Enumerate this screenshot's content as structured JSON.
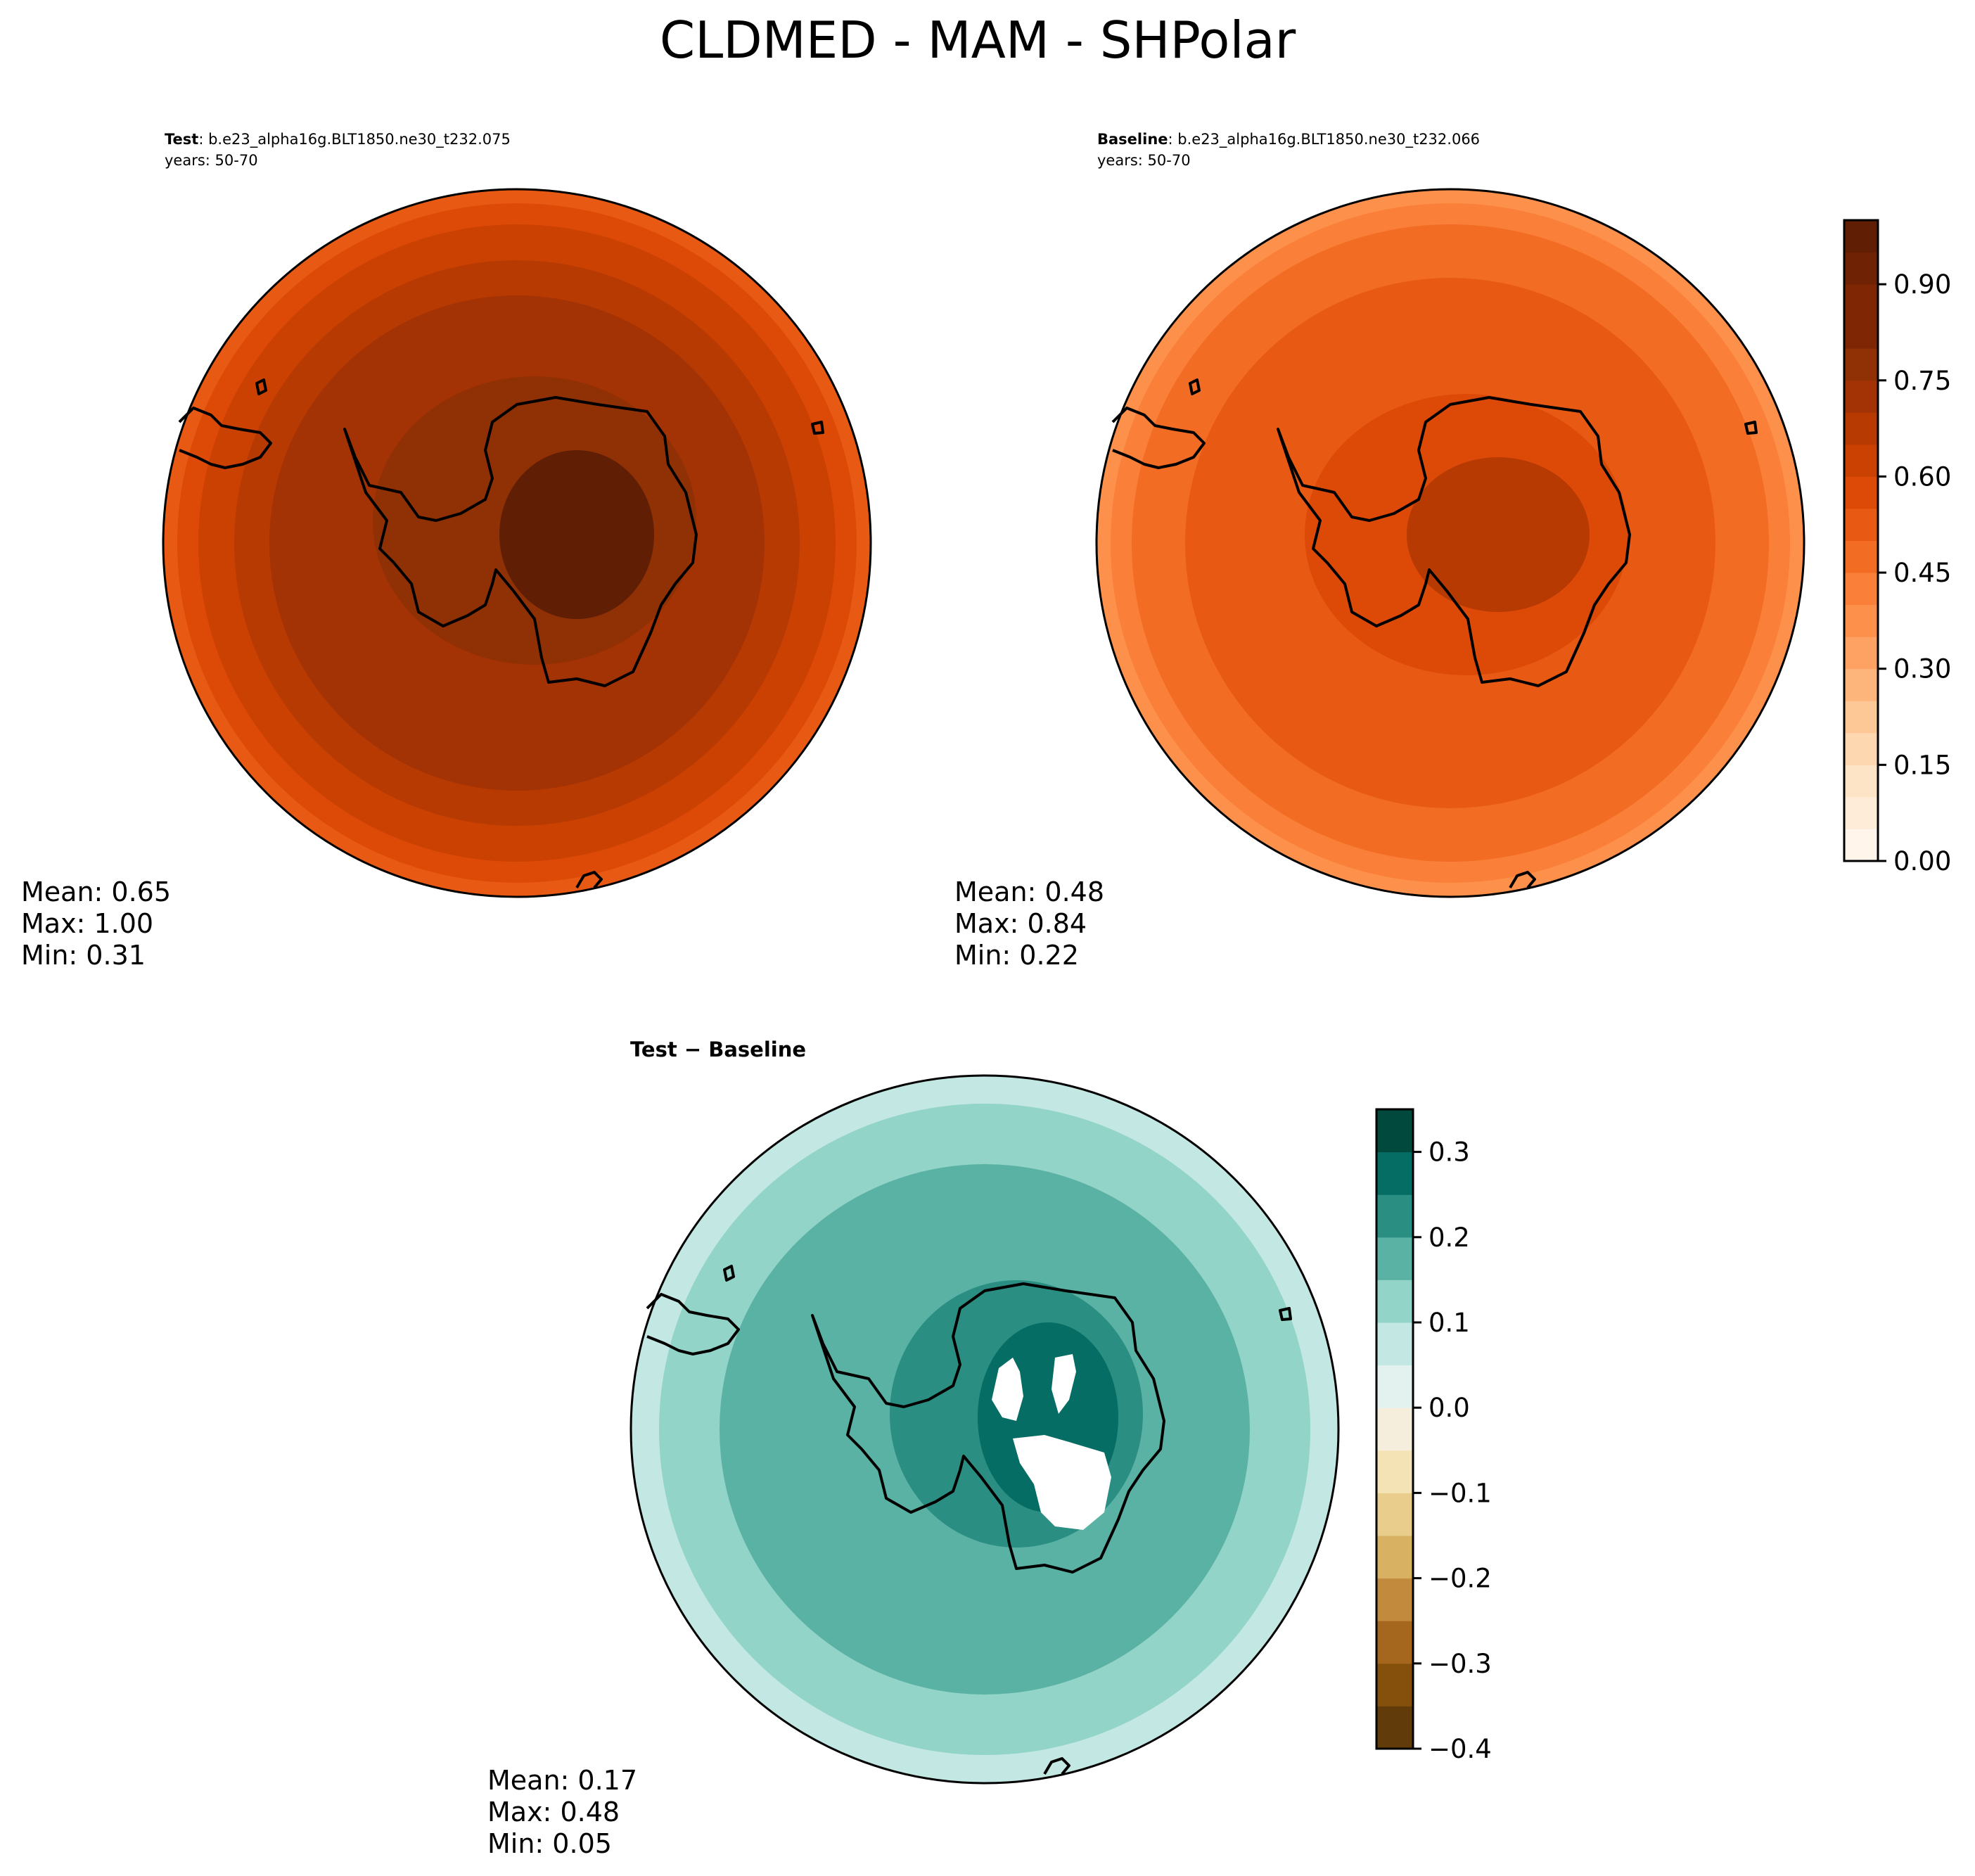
{
  "figure_title": "CLDMED - MAM - SHPolar",
  "chart_data": [
    {
      "type": "heatmap",
      "projection": "south-polar-stereographic",
      "title_label": "Test",
      "title_text": ": b.e23_alpha16g.BLT1850.ne30_t232.075",
      "subtitle": "years: 50-70",
      "stats": {
        "mean": "Mean:  0.65",
        "max": "Max:  1.00",
        "min": "Min:  0.31"
      },
      "mean": 0.65,
      "max": 1.0,
      "min": 0.31,
      "zones": [
        {
          "r": 1.0,
          "value": 0.5
        },
        {
          "r": 0.96,
          "value": 0.55
        },
        {
          "r": 0.9,
          "value": 0.6
        },
        {
          "r": 0.8,
          "value": 0.65
        },
        {
          "r": 0.7,
          "value": 0.7
        },
        {
          "r": 0.45,
          "value": 0.75
        },
        {
          "r": 0.22,
          "value": 0.95
        }
      ],
      "colormap": "Oranges"
    },
    {
      "type": "heatmap",
      "projection": "south-polar-stereographic",
      "title_label": "Baseline",
      "title_text": ": b.e23_alpha16g.BLT1850.ne30_t232.066",
      "subtitle": "years: 50-70",
      "stats": {
        "mean": "Mean:  0.48",
        "max": "Max:  0.84",
        "min": "Min:  0.22"
      },
      "mean": 0.48,
      "max": 0.84,
      "min": 0.22,
      "zones": [
        {
          "r": 1.0,
          "value": 0.35
        },
        {
          "r": 0.96,
          "value": 0.4
        },
        {
          "r": 0.9,
          "value": 0.45
        },
        {
          "r": 0.75,
          "value": 0.5
        },
        {
          "r": 0.45,
          "value": 0.55
        },
        {
          "r": 0.25,
          "value": 0.65
        }
      ],
      "colormap": "Oranges",
      "colorbar": {
        "levels": [
          0.0,
          0.05,
          0.1,
          0.15,
          0.2,
          0.25,
          0.3,
          0.35,
          0.4,
          0.45,
          0.5,
          0.55,
          0.6,
          0.65,
          0.7,
          0.75,
          0.8,
          0.85,
          0.9,
          0.95,
          1.0
        ],
        "ticks": [
          0.0,
          0.15,
          0.3,
          0.45,
          0.6,
          0.75,
          0.9
        ],
        "tick_labels": [
          "0.00",
          "0.15",
          "0.30",
          "0.45",
          "0.60",
          "0.75",
          "0.90"
        ],
        "colors": [
          "#fff5eb",
          "#feecd9",
          "#fee4c7",
          "#fdd7b0",
          "#fdc896",
          "#fdb57c",
          "#fda262",
          "#fd914c",
          "#fa7f38",
          "#f26c24",
          "#e85a14",
          "#dd4a08",
          "#cb4102",
          "#b73a03",
          "#a33204",
          "#903005",
          "#7f2704",
          "#7f2704",
          "#6f2304",
          "#601f04"
        ]
      }
    },
    {
      "type": "heatmap",
      "projection": "south-polar-stereographic",
      "title_label": "Test − Baseline",
      "stats": {
        "mean": "Mean:  0.17",
        "max": "Max:  0.48",
        "min": "Min:  0.05"
      },
      "mean": 0.17,
      "max": 0.48,
      "min": 0.05,
      "zones": [
        {
          "r": 1.0,
          "value": 0.08
        },
        {
          "r": 0.92,
          "value": 0.13
        },
        {
          "r": 0.75,
          "value": 0.18
        },
        {
          "r": 0.35,
          "value": 0.23
        },
        {
          "r": 0.22,
          "value": 0.28
        }
      ],
      "colormap": "BrBG",
      "colorbar": {
        "levels": [
          -0.4,
          -0.35,
          -0.3,
          -0.25,
          -0.2,
          -0.15,
          -0.1,
          -0.05,
          0.0,
          0.05,
          0.1,
          0.15,
          0.2,
          0.25,
          0.3,
          0.35
        ],
        "ticks": [
          -0.4,
          -0.3,
          -0.2,
          -0.1,
          0.0,
          0.1,
          0.2,
          0.3
        ],
        "tick_labels": [
          "−0.4",
          "−0.3",
          "−0.2",
          "−0.1",
          "0.0",
          "0.1",
          "0.2",
          "0.3"
        ],
        "colors": [
          "#623b0a",
          "#84500c",
          "#a5661e",
          "#c28a3c",
          "#d8b162",
          "#e8cd8d",
          "#f4e3b4",
          "#f6eedc",
          "#e4f2ef",
          "#c3e7e2",
          "#92d4c7",
          "#5ab2a4",
          "#2a8e83",
          "#056d63",
          "#01483d"
        ]
      }
    }
  ]
}
